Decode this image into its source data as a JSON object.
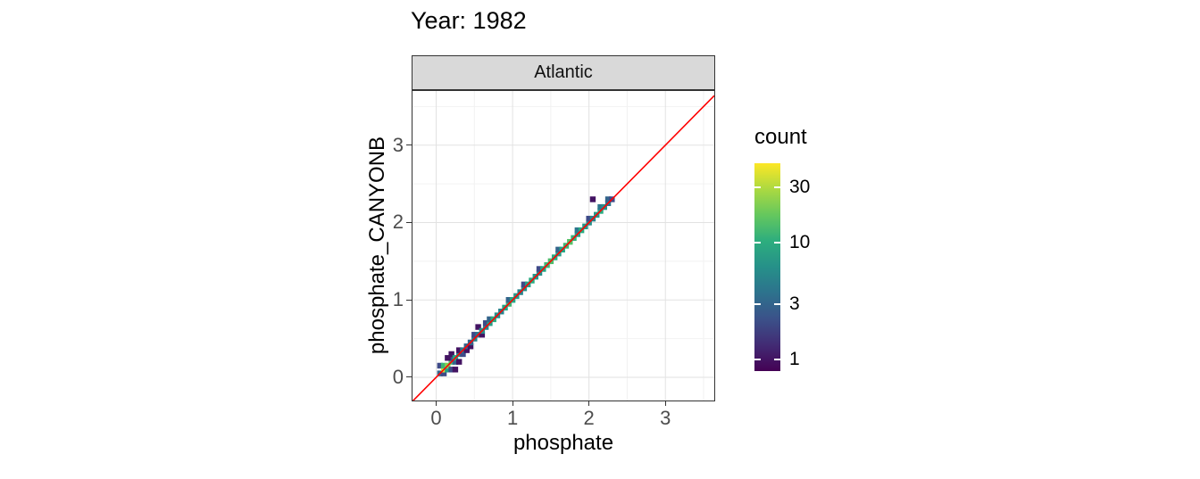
{
  "title": "Year: 1982",
  "facet": {
    "label": "Atlantic"
  },
  "legend": {
    "title": "count",
    "tick_values": [
      30,
      10,
      3,
      1
    ],
    "domain": [
      0.8,
      48
    ]
  },
  "colors": {
    "identity_line": "#ff0000",
    "strip_bg": "#d9d9d9",
    "panel_border": "#333333",
    "grid_major": "#e2e2e2",
    "grid_minor": "#f2f2f2",
    "tick_label": "#4d4d4d",
    "viridis_stops": [
      {
        "t": 0.0,
        "c": "#440154"
      },
      {
        "t": 0.2,
        "c": "#414487"
      },
      {
        "t": 0.4,
        "c": "#2a788e"
      },
      {
        "t": 0.6,
        "c": "#22a884"
      },
      {
        "t": 0.8,
        "c": "#7ad151"
      },
      {
        "t": 1.0,
        "c": "#fde725"
      }
    ]
  },
  "chart_data": {
    "type": "heatmap",
    "subtype": "bin2d",
    "title": "Year: 1982",
    "facet": "Atlantic",
    "xlabel": "phosphate",
    "ylabel": "phosphate_CANYONB",
    "x_ticks": [
      0,
      1,
      2,
      3
    ],
    "y_ticks": [
      0,
      1,
      2,
      3
    ],
    "x_minor_ticks": [
      0.5,
      1.5,
      2.5,
      3.5
    ],
    "y_minor_ticks": [
      0.5,
      1.5,
      2.5,
      3.5
    ],
    "xlim": [
      -0.31,
      3.64
    ],
    "ylim": [
      -0.3,
      3.7
    ],
    "bin_size": 0.075,
    "identity_line": true,
    "legend": {
      "title": "count",
      "tick_values": [
        30,
        10,
        3,
        1
      ],
      "domain": [
        0.8,
        48
      ],
      "scale": "log10",
      "position": "right"
    },
    "grid": true,
    "bins": [
      [
        0.05,
        0.05,
        3
      ],
      [
        0.1,
        0.05,
        2
      ],
      [
        0.05,
        0.15,
        2
      ],
      [
        0.1,
        0.1,
        38
      ],
      [
        0.15,
        0.1,
        8
      ],
      [
        0.1,
        0.15,
        12
      ],
      [
        0.15,
        0.15,
        22
      ],
      [
        0.2,
        0.1,
        2
      ],
      [
        0.25,
        0.1,
        1
      ],
      [
        0.2,
        0.2,
        14
      ],
      [
        0.25,
        0.2,
        3
      ],
      [
        0.2,
        0.25,
        2
      ],
      [
        0.15,
        0.25,
        1
      ],
      [
        0.2,
        0.3,
        1
      ],
      [
        0.25,
        0.25,
        9
      ],
      [
        0.3,
        0.3,
        6
      ],
      [
        0.3,
        0.2,
        1
      ],
      [
        0.35,
        0.3,
        2
      ],
      [
        0.3,
        0.35,
        1
      ],
      [
        0.35,
        0.35,
        4
      ],
      [
        0.4,
        0.35,
        1
      ],
      [
        0.4,
        0.4,
        3
      ],
      [
        0.45,
        0.4,
        1
      ],
      [
        0.45,
        0.45,
        3
      ],
      [
        0.5,
        0.5,
        5
      ],
      [
        0.5,
        0.55,
        2
      ],
      [
        0.55,
        0.55,
        4
      ],
      [
        0.6,
        0.55,
        1
      ],
      [
        0.55,
        0.65,
        1
      ],
      [
        0.6,
        0.6,
        6
      ],
      [
        0.65,
        0.65,
        5
      ],
      [
        0.65,
        0.7,
        2
      ],
      [
        0.7,
        0.7,
        8
      ],
      [
        0.7,
        0.75,
        3
      ],
      [
        0.75,
        0.75,
        10
      ],
      [
        0.8,
        0.8,
        6
      ],
      [
        0.85,
        0.85,
        5
      ],
      [
        0.9,
        0.9,
        9
      ],
      [
        0.95,
        0.95,
        12
      ],
      [
        0.95,
        1.0,
        3
      ],
      [
        1.0,
        1.0,
        9
      ],
      [
        1.05,
        1.05,
        7
      ],
      [
        1.1,
        1.1,
        5
      ],
      [
        1.15,
        1.15,
        6
      ],
      [
        1.15,
        1.2,
        2
      ],
      [
        1.2,
        1.2,
        8
      ],
      [
        1.25,
        1.25,
        10
      ],
      [
        1.3,
        1.3,
        7
      ],
      [
        1.35,
        1.35,
        6
      ],
      [
        1.35,
        1.4,
        2
      ],
      [
        1.4,
        1.4,
        9
      ],
      [
        1.45,
        1.45,
        12
      ],
      [
        1.5,
        1.5,
        14
      ],
      [
        1.55,
        1.55,
        10
      ],
      [
        1.6,
        1.6,
        8
      ],
      [
        1.6,
        1.65,
        3
      ],
      [
        1.65,
        1.65,
        9
      ],
      [
        1.7,
        1.7,
        12
      ],
      [
        1.75,
        1.75,
        15
      ],
      [
        1.8,
        1.8,
        11
      ],
      [
        1.85,
        1.85,
        8
      ],
      [
        1.85,
        1.9,
        4
      ],
      [
        1.9,
        1.9,
        10
      ],
      [
        1.95,
        1.95,
        7
      ],
      [
        2.0,
        2.0,
        6
      ],
      [
        2.0,
        2.05,
        2
      ],
      [
        2.05,
        2.05,
        5
      ],
      [
        2.1,
        2.1,
        7
      ],
      [
        2.15,
        2.15,
        10
      ],
      [
        2.15,
        2.2,
        4
      ],
      [
        2.2,
        2.2,
        6
      ],
      [
        2.25,
        2.25,
        4
      ],
      [
        2.25,
        2.3,
        3
      ],
      [
        2.3,
        2.3,
        2
      ],
      [
        2.05,
        2.3,
        1
      ]
    ]
  }
}
